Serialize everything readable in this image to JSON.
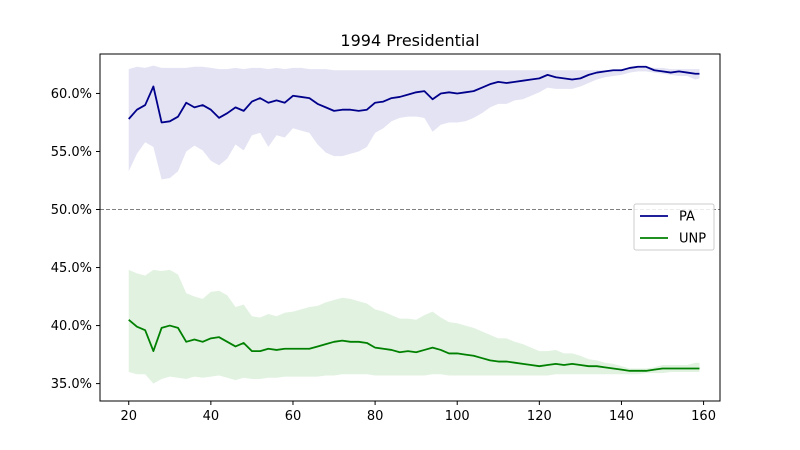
{
  "chart_data": {
    "type": "line",
    "title": "1994 Presidential",
    "xlabel": "",
    "ylabel": "",
    "xlim": [
      13,
      164
    ],
    "ylim": [
      33.5,
      63.4
    ],
    "xticks": [
      20,
      40,
      60,
      80,
      100,
      120,
      140,
      160
    ],
    "yticks": [
      35,
      40,
      45,
      50,
      55,
      60
    ],
    "ytick_labels": [
      "35.0%",
      "40.0%",
      "45.0%",
      "50.0%",
      "55.0%",
      "60.0%"
    ],
    "grid": false,
    "legend_position": "center-right",
    "reference_line": {
      "y": 50,
      "style": "dashed",
      "color": "#808080"
    },
    "x": [
      20,
      22,
      24,
      26,
      28,
      30,
      32,
      34,
      36,
      38,
      40,
      42,
      44,
      46,
      48,
      50,
      52,
      54,
      56,
      58,
      60,
      62,
      64,
      66,
      68,
      70,
      72,
      74,
      76,
      78,
      80,
      82,
      84,
      86,
      88,
      90,
      92,
      94,
      96,
      98,
      100,
      102,
      104,
      106,
      108,
      110,
      112,
      114,
      116,
      118,
      120,
      122,
      124,
      126,
      128,
      130,
      132,
      134,
      136,
      138,
      140,
      142,
      144,
      146,
      148,
      150,
      152,
      154,
      156,
      158,
      159
    ],
    "series": [
      {
        "name": "PA",
        "color": "#00008b",
        "band_color": "#e3e3f4",
        "values": [
          57.8,
          58.6,
          59.0,
          60.6,
          57.5,
          57.6,
          58.0,
          59.2,
          58.8,
          59.0,
          58.6,
          57.9,
          58.3,
          58.8,
          58.5,
          59.3,
          59.6,
          59.2,
          59.4,
          59.2,
          59.8,
          59.7,
          59.6,
          59.1,
          58.8,
          58.5,
          58.6,
          58.6,
          58.5,
          58.6,
          59.2,
          59.3,
          59.6,
          59.7,
          59.9,
          60.1,
          60.2,
          59.5,
          60.0,
          60.1,
          60.0,
          60.1,
          60.2,
          60.5,
          60.8,
          61.0,
          60.9,
          61.0,
          61.1,
          61.2,
          61.3,
          61.6,
          61.4,
          61.3,
          61.2,
          61.3,
          61.6,
          61.8,
          61.9,
          62.0,
          62.0,
          62.2,
          62.3,
          62.3,
          62.0,
          61.9,
          61.8,
          61.9,
          61.8,
          61.7,
          61.7
        ],
        "lower": [
          53.3,
          54.8,
          55.8,
          55.4,
          52.6,
          52.7,
          53.3,
          55.0,
          55.5,
          55.1,
          54.2,
          53.8,
          54.4,
          55.6,
          55.1,
          56.4,
          56.6,
          55.4,
          56.4,
          56.2,
          57.0,
          56.8,
          56.6,
          55.6,
          54.9,
          54.6,
          54.6,
          54.8,
          55.0,
          55.4,
          56.6,
          57.0,
          57.6,
          57.9,
          58.0,
          58.0,
          57.9,
          56.7,
          57.3,
          57.5,
          57.5,
          57.6,
          57.9,
          58.3,
          58.8,
          59.1,
          59.1,
          59.4,
          59.5,
          59.8,
          60.1,
          60.5,
          60.4,
          60.4,
          60.4,
          60.6,
          60.9,
          61.2,
          61.4,
          61.5,
          61.6,
          61.8,
          61.9,
          61.9,
          61.8,
          61.7,
          61.6,
          61.5,
          61.5,
          61.2,
          61.3
        ],
        "upper": [
          62.1,
          62.3,
          62.2,
          62.4,
          62.2,
          62.2,
          62.2,
          62.2,
          62.3,
          62.3,
          62.2,
          62.1,
          62.1,
          62.2,
          62.1,
          62.2,
          62.2,
          62.1,
          62.2,
          62.1,
          62.2,
          62.2,
          62.1,
          62.1,
          62.1,
          62.0,
          62.0,
          62.0,
          62.0,
          62.0,
          62.0,
          62.0,
          62.0,
          62.0,
          62.0,
          62.0,
          62.0,
          62.0,
          62.0,
          62.0,
          62.0,
          62.0,
          62.0,
          62.0,
          62.0,
          62.0,
          62.0,
          62.0,
          62.0,
          62.0,
          62.0,
          62.0,
          62.0,
          62.0,
          62.0,
          62.0,
          62.0,
          62.0,
          62.0,
          62.0,
          62.1,
          62.2,
          62.3,
          62.3,
          62.2,
          62.2,
          62.1,
          62.1,
          62.1,
          62.1,
          62.1
        ]
      },
      {
        "name": "UNP",
        "color": "#008000",
        "band_color": "#e1f2e1",
        "values": [
          40.5,
          39.9,
          39.6,
          37.8,
          39.8,
          40.0,
          39.8,
          38.6,
          38.8,
          38.6,
          38.9,
          39.0,
          38.6,
          38.2,
          38.5,
          37.8,
          37.8,
          38.0,
          37.9,
          38.0,
          38.0,
          38.0,
          38.0,
          38.2,
          38.4,
          38.6,
          38.7,
          38.6,
          38.6,
          38.5,
          38.1,
          38.0,
          37.9,
          37.7,
          37.8,
          37.7,
          37.9,
          38.1,
          37.9,
          37.6,
          37.6,
          37.5,
          37.4,
          37.2,
          37.0,
          36.9,
          36.9,
          36.8,
          36.7,
          36.6,
          36.5,
          36.6,
          36.7,
          36.6,
          36.7,
          36.6,
          36.5,
          36.5,
          36.4,
          36.3,
          36.2,
          36.1,
          36.1,
          36.1,
          36.2,
          36.3,
          36.3,
          36.3,
          36.3,
          36.3,
          36.3
        ],
        "lower": [
          36.0,
          35.8,
          35.8,
          35.0,
          35.4,
          35.6,
          35.5,
          35.4,
          35.6,
          35.5,
          35.6,
          35.7,
          35.5,
          35.3,
          35.5,
          35.4,
          35.4,
          35.5,
          35.5,
          35.6,
          35.6,
          35.6,
          35.6,
          35.6,
          35.7,
          35.7,
          35.8,
          35.8,
          35.8,
          35.8,
          35.7,
          35.7,
          35.7,
          35.7,
          35.7,
          35.7,
          35.7,
          35.8,
          35.8,
          35.7,
          35.7,
          35.7,
          35.7,
          35.7,
          35.7,
          35.7,
          35.7,
          35.7,
          35.7,
          35.7,
          35.7,
          35.7,
          35.8,
          35.8,
          35.8,
          35.8,
          35.8,
          35.8,
          35.8,
          35.8,
          35.8,
          35.8,
          35.8,
          35.9,
          35.9,
          35.9,
          36.0,
          36.0,
          36.0,
          36.0,
          36.0
        ],
        "upper": [
          44.8,
          44.5,
          44.3,
          44.8,
          44.7,
          44.8,
          44.4,
          42.8,
          42.5,
          42.3,
          42.9,
          43.0,
          42.6,
          41.6,
          41.8,
          40.8,
          40.7,
          41.0,
          40.8,
          41.1,
          41.2,
          41.4,
          41.6,
          41.7,
          42.0,
          42.2,
          42.4,
          42.3,
          42.1,
          41.9,
          41.4,
          41.2,
          40.9,
          40.6,
          40.6,
          40.5,
          40.9,
          41.2,
          40.7,
          40.3,
          40.2,
          40.0,
          39.8,
          39.5,
          39.2,
          38.9,
          38.9,
          38.6,
          38.4,
          38.1,
          37.8,
          37.8,
          37.9,
          37.6,
          37.6,
          37.4,
          37.1,
          37.0,
          36.8,
          36.7,
          36.5,
          36.3,
          36.3,
          36.3,
          36.4,
          36.6,
          36.6,
          36.6,
          36.6,
          36.8,
          36.8
        ]
      }
    ]
  }
}
